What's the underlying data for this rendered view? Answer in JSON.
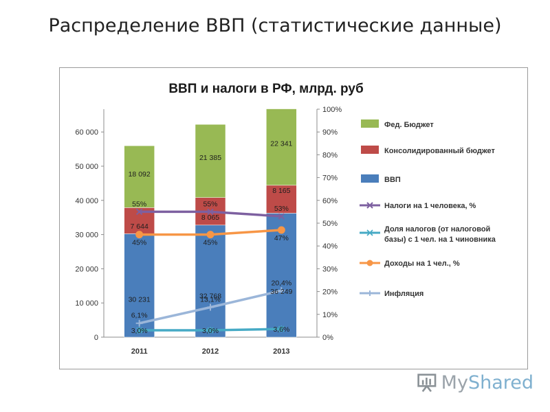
{
  "slide": {
    "title": "Распределение ВВП (статистические данные)"
  },
  "watermark": {
    "text_a": "My",
    "text_b": "Shared"
  },
  "chart_data": {
    "type": "bar",
    "title": "ВВП и налоги в  РФ, млрд. руб",
    "categories": [
      "2011",
      "2012",
      "2013"
    ],
    "stacked": true,
    "ylim": [
      0,
      60000
    ],
    "y_ticks": [
      "0",
      "10 000",
      "20 000",
      "30 000",
      "40 000",
      "50 000",
      "60 000"
    ],
    "y2lim": [
      0,
      100
    ],
    "y2_ticks": [
      "0%",
      "10%",
      "20%",
      "30%",
      "40%",
      "50%",
      "60%",
      "70%",
      "80%",
      "90%",
      "100%"
    ],
    "legend_position": "right",
    "grid": false,
    "bar_series": [
      {
        "name": "ВВП",
        "color": "#4a7ebb",
        "values": [
          30231,
          32768,
          36249
        ],
        "labels": [
          "30 231",
          "32 768",
          "36 249"
        ]
      },
      {
        "name": "Консолидированный бюджет",
        "color": "#be4b48",
        "values": [
          7644,
          8065,
          8165
        ],
        "labels": [
          "7 644",
          "8 065",
          "8 165"
        ]
      },
      {
        "name": "Фед. Бюджет",
        "color": "#98b954",
        "values": [
          18092,
          21385,
          22341
        ],
        "labels": [
          "18 092",
          "21 385",
          "22 341"
        ]
      }
    ],
    "line_series": [
      {
        "name": "Налоги на 1 человека, %",
        "color": "#7d60a0",
        "marker": "x",
        "values": [
          55,
          55,
          53
        ],
        "labels": [
          "55%",
          "55%",
          "53%"
        ]
      },
      {
        "name": "Доля налогов (от налоговой базы) с 1 чел. на 1 чиновника",
        "color": "#46aac5",
        "marker": "star",
        "values": [
          3.0,
          3.0,
          3.6
        ],
        "labels": [
          "3,0%",
          "3,0%",
          "3,6%"
        ]
      },
      {
        "name": "Доходы на 1 чел., %",
        "color": "#f79646",
        "marker": "circle",
        "values": [
          45,
          45,
          47
        ],
        "labels": [
          "45%",
          "45%",
          "47%"
        ]
      },
      {
        "name": "Инфляция",
        "color": "#9bb6d9",
        "marker": "plus",
        "values": [
          6.1,
          13.1,
          20.4
        ],
        "labels": [
          "6,1%",
          "13,1%",
          "20,4%"
        ]
      }
    ],
    "legend": [
      "Фед. Бюджет",
      "Консолидированный бюджет",
      "ВВП",
      "Налоги на 1 человека, %",
      "Доля налогов (от налоговой базы) с 1 чел. на 1 чиновника",
      "Доходы на 1 чел., %",
      "Инфляция"
    ]
  }
}
